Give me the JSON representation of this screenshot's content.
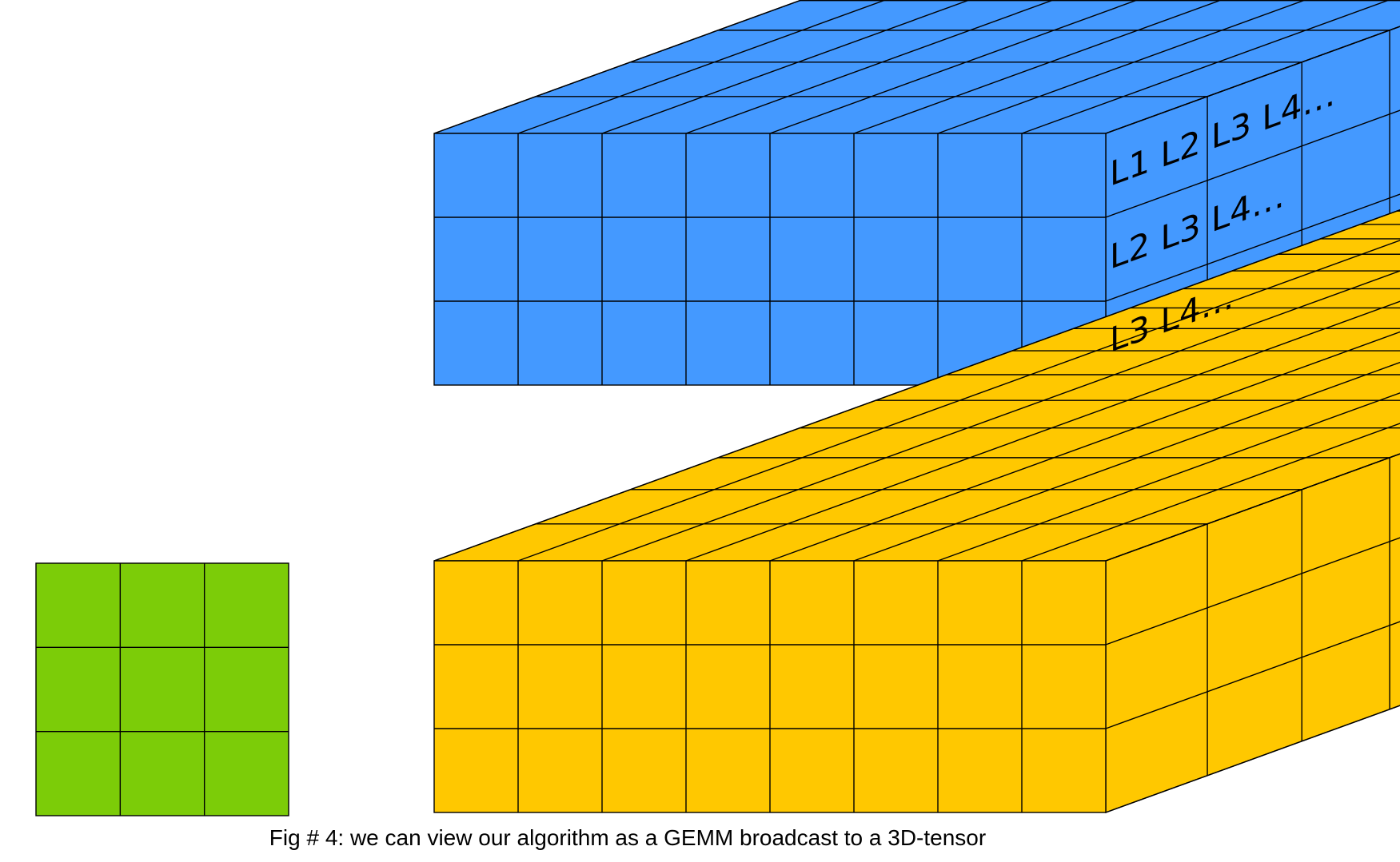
{
  "caption": "Fig # 4: we can view our algorithm as a GEMM broadcast to a 3D-tensor",
  "layer_labels": {
    "row1": "L1 L2 L3 L4…",
    "row2": "L2 L3 L4…",
    "row3": "L3 L4…"
  },
  "colors": {
    "filter": "#7ccc08",
    "top_tensor": "#4499ff",
    "bottom_tensor": "#ffc800",
    "lines": "#000000"
  },
  "filter_grid": {
    "rows": 3,
    "cols": 3
  },
  "tensor_grid": {
    "rows": 3,
    "cols": 8,
    "depth": 7
  }
}
